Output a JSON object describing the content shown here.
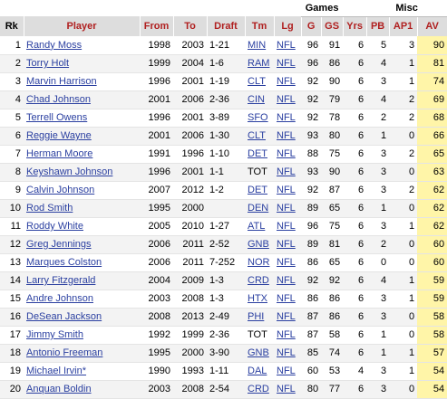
{
  "group_headers": {
    "games": "Games",
    "misc": "Misc"
  },
  "columns": [
    "Rk",
    "Player",
    "From",
    "To",
    "Draft",
    "Tm",
    "Lg",
    "G",
    "GS",
    "Yrs",
    "PB",
    "AP1",
    "AV"
  ],
  "rows": [
    {
      "rk": "1",
      "player": "Randy Moss",
      "from": "1998",
      "to": "2003",
      "draft": "1-21",
      "tm": "MIN",
      "tm_link": true,
      "lg": "NFL",
      "g": "96",
      "gs": "91",
      "yrs": "6",
      "pb": "5",
      "ap1": "3",
      "av": "90"
    },
    {
      "rk": "2",
      "player": "Torry Holt",
      "from": "1999",
      "to": "2004",
      "draft": "1-6",
      "tm": "RAM",
      "tm_link": true,
      "lg": "NFL",
      "g": "96",
      "gs": "86",
      "yrs": "6",
      "pb": "4",
      "ap1": "1",
      "av": "81"
    },
    {
      "rk": "3",
      "player": "Marvin Harrison",
      "from": "1996",
      "to": "2001",
      "draft": "1-19",
      "tm": "CLT",
      "tm_link": true,
      "lg": "NFL",
      "g": "92",
      "gs": "90",
      "yrs": "6",
      "pb": "3",
      "ap1": "1",
      "av": "74"
    },
    {
      "rk": "4",
      "player": "Chad Johnson",
      "from": "2001",
      "to": "2006",
      "draft": "2-36",
      "tm": "CIN",
      "tm_link": true,
      "lg": "NFL",
      "g": "92",
      "gs": "79",
      "yrs": "6",
      "pb": "4",
      "ap1": "2",
      "av": "69"
    },
    {
      "rk": "5",
      "player": "Terrell Owens",
      "from": "1996",
      "to": "2001",
      "draft": "3-89",
      "tm": "SFO",
      "tm_link": true,
      "lg": "NFL",
      "g": "92",
      "gs": "78",
      "yrs": "6",
      "pb": "2",
      "ap1": "2",
      "av": "68"
    },
    {
      "rk": "6",
      "player": "Reggie Wayne",
      "from": "2001",
      "to": "2006",
      "draft": "1-30",
      "tm": "CLT",
      "tm_link": true,
      "lg": "NFL",
      "g": "93",
      "gs": "80",
      "yrs": "6",
      "pb": "1",
      "ap1": "0",
      "av": "66"
    },
    {
      "rk": "7",
      "player": "Herman Moore",
      "from": "1991",
      "to": "1996",
      "draft": "1-10",
      "tm": "DET",
      "tm_link": true,
      "lg": "NFL",
      "g": "88",
      "gs": "75",
      "yrs": "6",
      "pb": "3",
      "ap1": "2",
      "av": "65"
    },
    {
      "rk": "8",
      "player": "Keyshawn Johnson",
      "from": "1996",
      "to": "2001",
      "draft": "1-1",
      "tm": "TOT",
      "tm_link": false,
      "lg": "NFL",
      "g": "93",
      "gs": "90",
      "yrs": "6",
      "pb": "3",
      "ap1": "0",
      "av": "63"
    },
    {
      "rk": "9",
      "player": "Calvin Johnson",
      "from": "2007",
      "to": "2012",
      "draft": "1-2",
      "tm": "DET",
      "tm_link": true,
      "lg": "NFL",
      "g": "92",
      "gs": "87",
      "yrs": "6",
      "pb": "3",
      "ap1": "2",
      "av": "62"
    },
    {
      "rk": "10",
      "player": "Rod Smith",
      "from": "1995",
      "to": "2000",
      "draft": "",
      "tm": "DEN",
      "tm_link": true,
      "lg": "NFL",
      "g": "89",
      "gs": "65",
      "yrs": "6",
      "pb": "1",
      "ap1": "0",
      "av": "62"
    },
    {
      "rk": "11",
      "player": "Roddy White",
      "from": "2005",
      "to": "2010",
      "draft": "1-27",
      "tm": "ATL",
      "tm_link": true,
      "lg": "NFL",
      "g": "96",
      "gs": "75",
      "yrs": "6",
      "pb": "3",
      "ap1": "1",
      "av": "62"
    },
    {
      "rk": "12",
      "player": "Greg Jennings",
      "from": "2006",
      "to": "2011",
      "draft": "2-52",
      "tm": "GNB",
      "tm_link": true,
      "lg": "NFL",
      "g": "89",
      "gs": "81",
      "yrs": "6",
      "pb": "2",
      "ap1": "0",
      "av": "60"
    },
    {
      "rk": "13",
      "player": "Marques Colston",
      "from": "2006",
      "to": "2011",
      "draft": "7-252",
      "tm": "NOR",
      "tm_link": true,
      "lg": "NFL",
      "g": "86",
      "gs": "65",
      "yrs": "6",
      "pb": "0",
      "ap1": "0",
      "av": "60"
    },
    {
      "rk": "14",
      "player": "Larry Fitzgerald",
      "from": "2004",
      "to": "2009",
      "draft": "1-3",
      "tm": "CRD",
      "tm_link": true,
      "lg": "NFL",
      "g": "92",
      "gs": "92",
      "yrs": "6",
      "pb": "4",
      "ap1": "1",
      "av": "59"
    },
    {
      "rk": "15",
      "player": "Andre Johnson",
      "from": "2003",
      "to": "2008",
      "draft": "1-3",
      "tm": "HTX",
      "tm_link": true,
      "lg": "NFL",
      "g": "86",
      "gs": "86",
      "yrs": "6",
      "pb": "3",
      "ap1": "1",
      "av": "59"
    },
    {
      "rk": "16",
      "player": "DeSean Jackson",
      "from": "2008",
      "to": "2013",
      "draft": "2-49",
      "tm": "PHI",
      "tm_link": true,
      "lg": "NFL",
      "g": "87",
      "gs": "86",
      "yrs": "6",
      "pb": "3",
      "ap1": "0",
      "av": "58"
    },
    {
      "rk": "17",
      "player": "Jimmy Smith",
      "from": "1992",
      "to": "1999",
      "draft": "2-36",
      "tm": "TOT",
      "tm_link": false,
      "lg": "NFL",
      "g": "87",
      "gs": "58",
      "yrs": "6",
      "pb": "1",
      "ap1": "0",
      "av": "58"
    },
    {
      "rk": "18",
      "player": "Antonio Freeman",
      "from": "1995",
      "to": "2000",
      "draft": "3-90",
      "tm": "GNB",
      "tm_link": true,
      "lg": "NFL",
      "g": "85",
      "gs": "74",
      "yrs": "6",
      "pb": "1",
      "ap1": "1",
      "av": "57"
    },
    {
      "rk": "19",
      "player": "Michael Irvin*",
      "from": "1990",
      "to": "1993",
      "draft": "1-11",
      "tm": "DAL",
      "tm_link": true,
      "lg": "NFL",
      "g": "60",
      "gs": "53",
      "yrs": "4",
      "pb": "3",
      "ap1": "1",
      "av": "54"
    },
    {
      "rk": "20",
      "player": "Anquan Boldin",
      "from": "2003",
      "to": "2008",
      "draft": "2-54",
      "tm": "CRD",
      "tm_link": true,
      "lg": "NFL",
      "g": "80",
      "gs": "77",
      "yrs": "6",
      "pb": "3",
      "ap1": "0",
      "av": "54"
    }
  ]
}
